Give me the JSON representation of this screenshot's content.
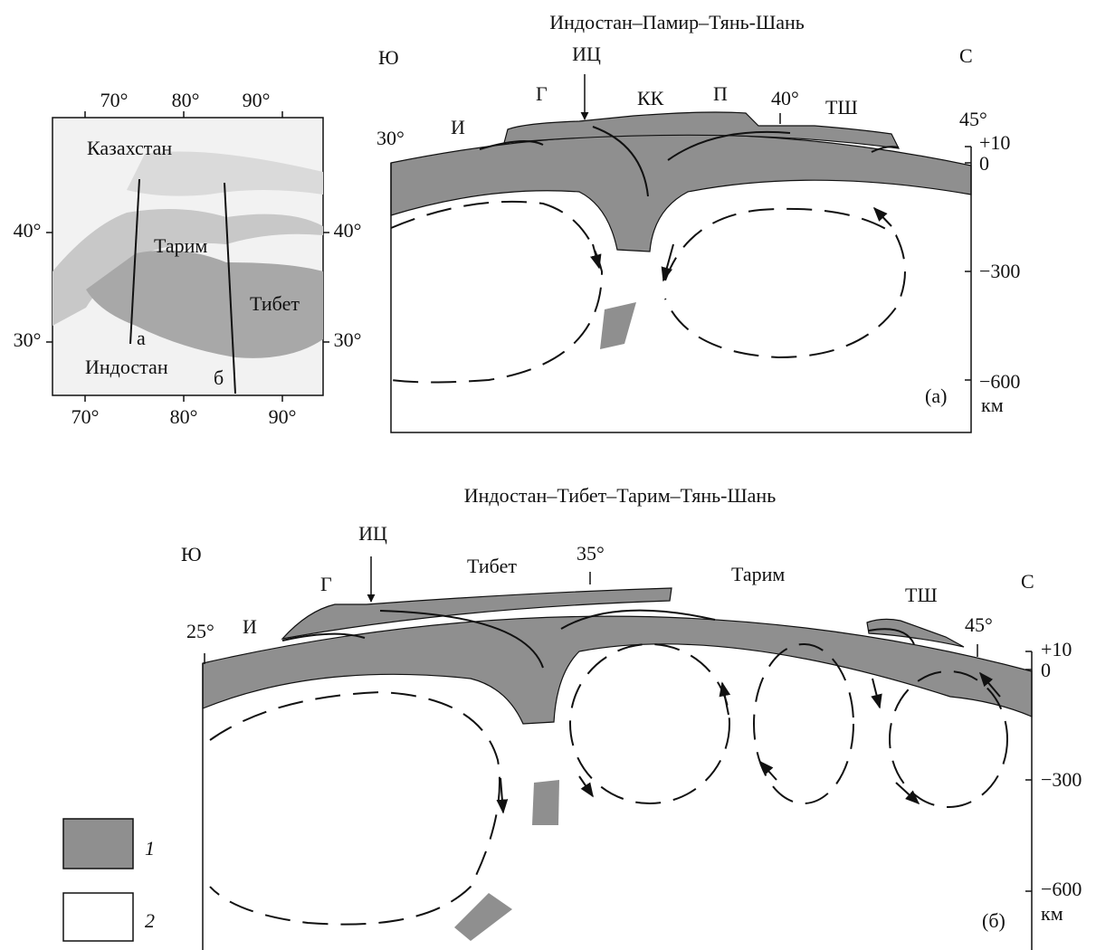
{
  "map": {
    "top_ticks": [
      "70°",
      "80°",
      "90°"
    ],
    "bottom_ticks": [
      "70°",
      "80°",
      "90°"
    ],
    "left_ticks": [
      "40°",
      "30°"
    ],
    "right_ticks": [
      "40°",
      "30°"
    ],
    "labels": [
      "Казахстан",
      "Тарим",
      "Тибет",
      "Индостан",
      "а",
      "б"
    ]
  },
  "section_a": {
    "title": "Индостан–Памир–Тянь-Шань",
    "labels": [
      "Ю",
      "ИЦ",
      "С",
      "Г",
      "КК",
      "П",
      "40°",
      "ТШ",
      "45°",
      "30°",
      "И"
    ],
    "axis": [
      "+10",
      "0",
      "−300",
      "−600",
      "км"
    ],
    "panel": "(а)"
  },
  "section_b": {
    "title": "Индостан–Тибет–Тарим–Тянь-Шань",
    "labels": [
      "Ю",
      "ИЦ",
      "Тибет",
      "35°",
      "Тарим",
      "С",
      "Г",
      "ТШ",
      "25°",
      "И",
      "45°"
    ],
    "axis": [
      "+10",
      "0",
      "−300",
      "−600",
      "км"
    ],
    "panel": "(б)"
  },
  "legend": [
    "1",
    "2"
  ]
}
